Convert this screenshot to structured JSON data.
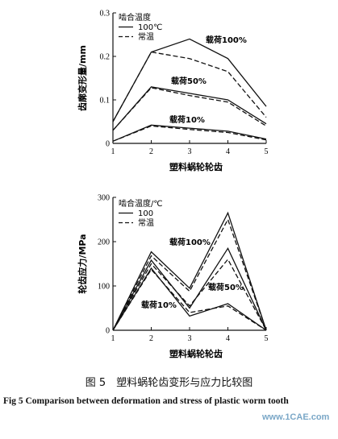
{
  "chart_data": [
    {
      "type": "line",
      "xlabel": "塑料蜗轮轮齿",
      "ylabel": "齿廓变形量/mm",
      "x": [
        1,
        2,
        3,
        4,
        5
      ],
      "xlim": [
        1,
        5
      ],
      "ylim": [
        0,
        0.3
      ],
      "yticks": [
        "0",
        "0.1",
        "0.2",
        "0.3"
      ],
      "xticks": [
        "1",
        "2",
        "3",
        "4",
        "5"
      ],
      "legend_title": "啮合温度",
      "legend_labels": [
        "100℃",
        "常温"
      ],
      "legend_position": "top-left",
      "annotations": [
        "载荷100%",
        "载荷50%",
        "载荷10%"
      ],
      "series": [
        {
          "style": "solid",
          "values": [
            0.05,
            0.21,
            0.24,
            0.195,
            0.085
          ]
        },
        {
          "style": "dashed",
          "values": [
            0.05,
            0.21,
            0.195,
            0.165,
            0.06
          ]
        },
        {
          "style": "solid",
          "values": [
            0.03,
            0.13,
            0.115,
            0.1,
            0.045
          ]
        },
        {
          "style": "dashed",
          "values": [
            0.03,
            0.128,
            0.11,
            0.095,
            0.04
          ]
        },
        {
          "style": "solid",
          "values": [
            0.005,
            0.042,
            0.035,
            0.028,
            0.01
          ]
        },
        {
          "style": "dashed",
          "values": [
            0.005,
            0.04,
            0.032,
            0.025,
            0.008
          ]
        }
      ]
    },
    {
      "type": "line",
      "xlabel": "塑料蜗轮轮齿",
      "ylabel": "轮齿应力/MPa",
      "x": [
        1,
        2,
        3,
        4,
        5
      ],
      "xlim": [
        1,
        5
      ],
      "ylim": [
        0,
        300
      ],
      "yticks": [
        "0",
        "100",
        "200",
        "300"
      ],
      "xticks": [
        "1",
        "2",
        "3",
        "4",
        "5"
      ],
      "legend_title": "啮合温度/℃",
      "legend_labels": [
        "100",
        "常温"
      ],
      "legend_position": "top-left",
      "annotations": [
        "载荷100%",
        "载荷50%",
        "载荷10%"
      ],
      "series": [
        {
          "style": "solid",
          "values": [
            0,
            177,
            95,
            265,
            0
          ]
        },
        {
          "style": "dashed",
          "values": [
            0,
            168,
            88,
            250,
            0
          ]
        },
        {
          "style": "solid",
          "values": [
            0,
            158,
            50,
            185,
            0
          ]
        },
        {
          "style": "dashed",
          "values": [
            0,
            150,
            55,
            160,
            0
          ]
        },
        {
          "style": "solid",
          "values": [
            0,
            140,
            32,
            60,
            0
          ]
        },
        {
          "style": "dashed",
          "values": [
            0,
            137,
            40,
            55,
            0
          ]
        }
      ]
    }
  ],
  "caption": {
    "cn": "图 5　塑料蜗轮齿变形与应力比较图",
    "en": "Fig 5 Comparison between deformation and stress of plastic worm tooth"
  },
  "watermark": "www.1CAE.com"
}
